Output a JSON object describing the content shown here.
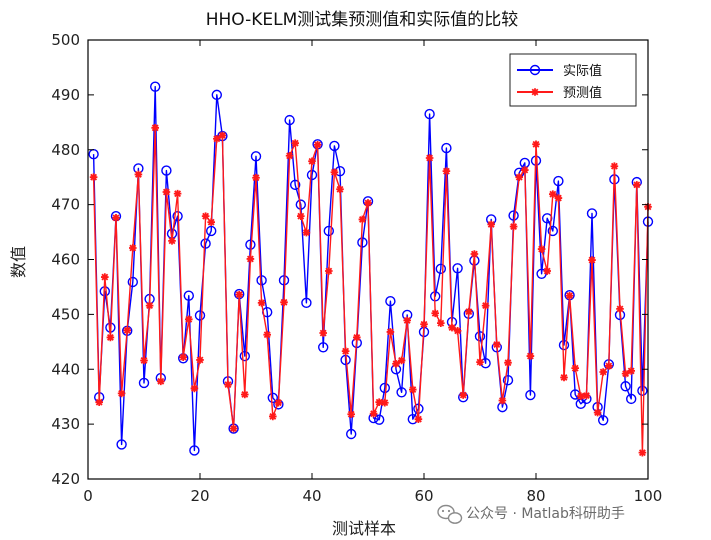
{
  "chart_data": {
    "type": "line",
    "title": "HHO-KELM测试集预测值和实际值的比较",
    "xlabel": "测试样本",
    "ylabel": "数值",
    "xlim": [
      0,
      100
    ],
    "ylim": [
      420,
      500
    ],
    "xticks": [
      0,
      20,
      40,
      60,
      80,
      100
    ],
    "yticks": [
      420,
      430,
      440,
      450,
      460,
      470,
      480,
      490,
      500
    ],
    "legend_position": "top-right",
    "series": [
      {
        "name": "实际值",
        "color": "#0000ff",
        "marker": "circle",
        "x": [
          1,
          2,
          3,
          4,
          5,
          6,
          7,
          8,
          9,
          10,
          11,
          12,
          13,
          14,
          15,
          16,
          17,
          18,
          19,
          20,
          21,
          22,
          23,
          24,
          25,
          26,
          27,
          28,
          29,
          30,
          31,
          32,
          33,
          34,
          35,
          36,
          37,
          38,
          39,
          40,
          41,
          42,
          43,
          44,
          45,
          46,
          47,
          48,
          49,
          50,
          51,
          52,
          53,
          54,
          55,
          56,
          57,
          58,
          59,
          60,
          61,
          62,
          63,
          64,
          65,
          66,
          67,
          68,
          69,
          70,
          71,
          72,
          73,
          74,
          75,
          76,
          77,
          78,
          79,
          80,
          81,
          82,
          83,
          84,
          85,
          86,
          87,
          88,
          89,
          90,
          91,
          92,
          93,
          94,
          95,
          96,
          97,
          98,
          99,
          100
        ],
        "values": [
          479.2,
          434.9,
          454.2,
          447.6,
          467.9,
          426.3,
          447.0,
          455.9,
          476.6,
          437.5,
          452.8,
          491.5,
          438.4,
          476.2,
          464.7,
          467.9,
          442.0,
          453.4,
          425.2,
          449.8,
          462.9,
          465.2,
          490.0,
          482.5,
          437.8,
          429.2,
          453.7,
          442.4,
          462.7,
          478.8,
          456.2,
          450.4,
          434.8,
          433.6,
          456.2,
          485.4,
          473.6,
          470.0,
          452.1,
          475.4,
          481.0,
          444.0,
          465.2,
          480.7,
          476.1,
          441.7,
          428.2,
          444.8,
          463.1,
          470.6,
          431.1,
          430.8,
          436.6,
          452.4,
          440.0,
          435.8,
          449.9,
          430.9,
          432.8,
          446.8,
          486.5,
          453.3,
          458.3,
          480.3,
          448.6,
          458.4,
          434.9,
          450.1,
          459.8,
          446.0,
          441.1,
          467.3,
          444.0,
          433.1,
          438.0,
          468.0,
          475.8,
          477.6,
          435.3,
          478.0,
          457.4,
          467.5,
          465.2,
          474.3,
          444.4,
          453.5,
          435.4,
          433.7,
          434.6,
          468.4,
          433.1,
          430.7,
          440.9,
          474.6,
          449.9,
          436.9,
          434.6,
          474.1,
          436.1,
          466.9
        ]
      },
      {
        "name": "预测值",
        "color": "#ff1a1a",
        "marker": "star",
        "x": [
          1,
          2,
          3,
          4,
          5,
          6,
          7,
          8,
          9,
          10,
          11,
          12,
          13,
          14,
          15,
          16,
          17,
          18,
          19,
          20,
          21,
          22,
          23,
          24,
          25,
          26,
          27,
          28,
          29,
          30,
          31,
          32,
          33,
          34,
          35,
          36,
          37,
          38,
          39,
          40,
          41,
          42,
          43,
          44,
          45,
          46,
          47,
          48,
          49,
          50,
          51,
          52,
          53,
          54,
          55,
          56,
          57,
          58,
          59,
          60,
          61,
          62,
          63,
          64,
          65,
          66,
          67,
          68,
          69,
          70,
          71,
          72,
          73,
          74,
          75,
          76,
          77,
          78,
          79,
          80,
          81,
          82,
          83,
          84,
          85,
          86,
          87,
          88,
          89,
          90,
          91,
          92,
          93,
          94,
          95,
          96,
          97,
          98,
          99,
          100
        ],
        "values": [
          475.0,
          434.0,
          456.8,
          445.8,
          467.6,
          435.6,
          447.1,
          462.1,
          475.5,
          441.6,
          451.6,
          484.0,
          437.8,
          472.3,
          463.4,
          472.0,
          442.2,
          449.1,
          436.5,
          441.7,
          467.9,
          466.8,
          482.0,
          482.6,
          437.2,
          429.2,
          453.6,
          435.4,
          460.1,
          474.9,
          452.1,
          446.3,
          431.4,
          433.9,
          452.2,
          478.9,
          481.2,
          467.9,
          464.9,
          477.9,
          480.9,
          446.6,
          457.9,
          475.9,
          472.8,
          443.3,
          431.8,
          445.8,
          467.3,
          470.3,
          431.9,
          434.0,
          433.9,
          446.8,
          441.0,
          441.6,
          448.9,
          436.3,
          430.9,
          448.2,
          478.5,
          450.2,
          448.4,
          476.1,
          447.6,
          447.0,
          435.3,
          450.5,
          461.0,
          441.3,
          451.6,
          466.4,
          444.5,
          434.3,
          441.2,
          466.0,
          475.0,
          476.3,
          442.4,
          481.0,
          461.9,
          457.9,
          471.9,
          471.2,
          438.5,
          453.4,
          440.2,
          435.1,
          435.2,
          459.9,
          432.1,
          439.5,
          440.6,
          477.0,
          451.0,
          439.2,
          439.7,
          473.6,
          424.8,
          469.6
        ]
      }
    ]
  },
  "watermark": {
    "text": "公众号 · Matlab科研助手"
  }
}
